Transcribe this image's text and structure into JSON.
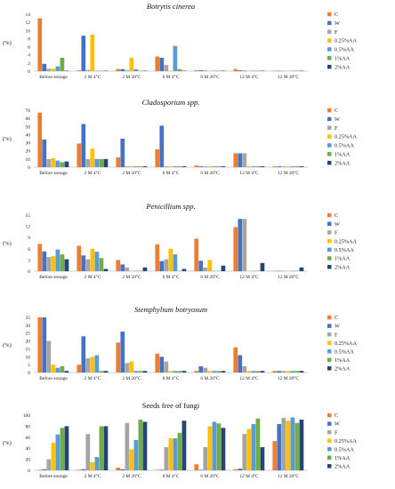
{
  "chart_data": [
    {
      "type": "bar",
      "title": "Botrytis cinerea",
      "italic": true,
      "ylabel": "(%)",
      "ylim": [
        0,
        14
      ],
      "yticks": [
        0,
        2,
        4,
        6,
        8,
        10,
        12,
        14
      ],
      "categories": [
        "Before storage",
        "2 M 4°C",
        "2 M 20°C",
        "6 M 4°C",
        "6 M 20°C",
        "12 M 4°C",
        "12 M 20°C"
      ],
      "series": [
        {
          "name": "C",
          "values": [
            13.0,
            0.2,
            0.5,
            3.6,
            0.2,
            0.5,
            0.1
          ]
        },
        {
          "name": "W",
          "values": [
            1.8,
            8.7,
            0.5,
            3.3,
            0.2,
            0.2,
            0.1
          ]
        },
        {
          "name": "F",
          "values": [
            0.6,
            0.3,
            0.2,
            1.5,
            0.2,
            0.2,
            0.1
          ]
        },
        {
          "name": "0.25%AA",
          "values": [
            0.6,
            9.0,
            3.3,
            0.1,
            0.1,
            0.1,
            0.1
          ]
        },
        {
          "name": "0.5%AA",
          "values": [
            1.2,
            0.1,
            0.5,
            6.2,
            0.1,
            0.1,
            0.1
          ]
        },
        {
          "name": "1%AA",
          "values": [
            3.3,
            0.1,
            0.1,
            0.5,
            0.1,
            0.1,
            0.1
          ]
        },
        {
          "name": "2%AA",
          "values": [
            0.1,
            0.1,
            0.1,
            0.1,
            0.1,
            0.1,
            0.1
          ]
        }
      ]
    },
    {
      "type": "bar",
      "title": "Cladosporium spp.",
      "italic": true,
      "ylabel": "(%)",
      "ylim": [
        0,
        70
      ],
      "yticks": [
        0,
        10,
        20,
        30,
        40,
        50,
        60,
        70
      ],
      "categories": [
        "Before storage",
        "2 M 4°C",
        "2 M 20°C",
        "6 M 4°C",
        "6 M 20°C",
        "12 M 4°C",
        "12 M 20°C"
      ],
      "series": [
        {
          "name": "C",
          "values": [
            67,
            29,
            12,
            22,
            2,
            17,
            1
          ]
        },
        {
          "name": "W",
          "values": [
            34,
            53,
            35,
            51,
            1,
            17,
            1
          ]
        },
        {
          "name": "F",
          "values": [
            10,
            10,
            1,
            1,
            1,
            17,
            1
          ]
        },
        {
          "name": "0.25%AA",
          "values": [
            11,
            23,
            1,
            1,
            1,
            1,
            1
          ]
        },
        {
          "name": "0.5%AA",
          "values": [
            8,
            10,
            1,
            1,
            1,
            1,
            1
          ]
        },
        {
          "name": "1%AA",
          "values": [
            6,
            10,
            1,
            1,
            1,
            1,
            1
          ]
        },
        {
          "name": "2%AA",
          "values": [
            7,
            10,
            1,
            1,
            1,
            1,
            1
          ]
        }
      ]
    },
    {
      "type": "bar",
      "title": "Penicillium spp.",
      "italic": true,
      "ylabel": "(%)",
      "ylim": [
        0,
        15
      ],
      "yticks": [
        0,
        3,
        6,
        9,
        12,
        15
      ],
      "categories": [
        "Before storage",
        "2 M 4°C",
        "2 M 20°C",
        "6 M 4°C",
        "6 M 20°C",
        "12 M 4°C",
        "12 M 20°C"
      ],
      "series": [
        {
          "name": "C",
          "values": [
            7.3,
            6.8,
            3.0,
            7.2,
            8.7,
            11.8,
            0.1
          ]
        },
        {
          "name": "W",
          "values": [
            5.3,
            4.2,
            1.8,
            2.7,
            2.8,
            14.0,
            0.1
          ]
        },
        {
          "name": "F",
          "values": [
            3.8,
            3.2,
            1.0,
            3.2,
            1.0,
            14.0,
            0.1
          ]
        },
        {
          "name": "0.25%AA",
          "values": [
            4.0,
            6.0,
            0.1,
            6.0,
            3.0,
            0.1,
            0.1
          ]
        },
        {
          "name": "0.5%AA",
          "values": [
            5.8,
            5.2,
            0.1,
            4.5,
            0.1,
            0.1,
            0.1
          ]
        },
        {
          "name": "1%AA",
          "values": [
            4.5,
            3.5,
            0.1,
            0.1,
            0.1,
            0.1,
            0.1
          ]
        },
        {
          "name": "2%AA",
          "values": [
            3.2,
            0.6,
            1.0,
            0.6,
            1.5,
            2.2,
            1.0
          ]
        }
      ]
    },
    {
      "type": "bar",
      "title": "Stemphylium botryosum",
      "italic": true,
      "ylabel": "(%)",
      "ylim": [
        0,
        35
      ],
      "yticks": [
        0,
        5,
        10,
        15,
        20,
        25,
        30,
        35
      ],
      "categories": [
        "Before storage",
        "2 M 4°C",
        "2 M 20°C",
        "6 M 4°C",
        "6 M 20°C",
        "12 M 4°C",
        "12 M 20°C"
      ],
      "series": [
        {
          "name": "C",
          "values": [
            35,
            5,
            19,
            12,
            1,
            16,
            1
          ]
        },
        {
          "name": "W",
          "values": [
            35,
            23,
            26,
            10,
            4,
            11,
            1
          ]
        },
        {
          "name": "F",
          "values": [
            20,
            9,
            6,
            7,
            3,
            4,
            1
          ]
        },
        {
          "name": "0.25%AA",
          "values": [
            5,
            10,
            7,
            1,
            1,
            1,
            1
          ]
        },
        {
          "name": "0.5%AA",
          "values": [
            3,
            11,
            1,
            1,
            1,
            1,
            1
          ]
        },
        {
          "name": "1%AA",
          "values": [
            4,
            1,
            1,
            1,
            1,
            1,
            1
          ]
        },
        {
          "name": "2%AA",
          "values": [
            1,
            1,
            1,
            1,
            1,
            1,
            1
          ]
        }
      ]
    },
    {
      "type": "bar",
      "title": "Seeds free of fungi",
      "italic": false,
      "ylabel": "(%)",
      "ylim": [
        0,
        100
      ],
      "yticks": [
        0,
        20,
        40,
        60,
        80,
        100
      ],
      "categories": [
        "Before storage",
        "2 M 4°C",
        "2 M 20°C",
        "6 M 4°C",
        "6 M 20°C",
        "12 M 4°C",
        "12 M 20°C"
      ],
      "series": [
        {
          "name": "C",
          "values": [
            1,
            1,
            5,
            1,
            11,
            2,
            53
          ]
        },
        {
          "name": "W",
          "values": [
            2,
            2,
            2,
            1,
            1,
            3,
            84
          ]
        },
        {
          "name": "F",
          "values": [
            20,
            66,
            86,
            42,
            42,
            66,
            95
          ]
        },
        {
          "name": "0.25%AA",
          "values": [
            50,
            15,
            38,
            58,
            80,
            75,
            90
          ]
        },
        {
          "name": "0.5%AA",
          "values": [
            65,
            24,
            55,
            58,
            88,
            84,
            96
          ]
        },
        {
          "name": "1%AA",
          "values": [
            77,
            80,
            92,
            68,
            85,
            94,
            86
          ]
        },
        {
          "name": "2%AA",
          "values": [
            80,
            80,
            88,
            90,
            77,
            42,
            92
          ]
        }
      ]
    }
  ],
  "colors": {
    "C": "#ED7D31",
    "W": "#4472C4",
    "F": "#A5A5A5",
    "0.25%AA": "#FFC000",
    "0.5%AA": "#5B9BD5",
    "1%AA": "#70AD47",
    "2%AA": "#264478"
  },
  "legend_placement": "right",
  "grid": false
}
